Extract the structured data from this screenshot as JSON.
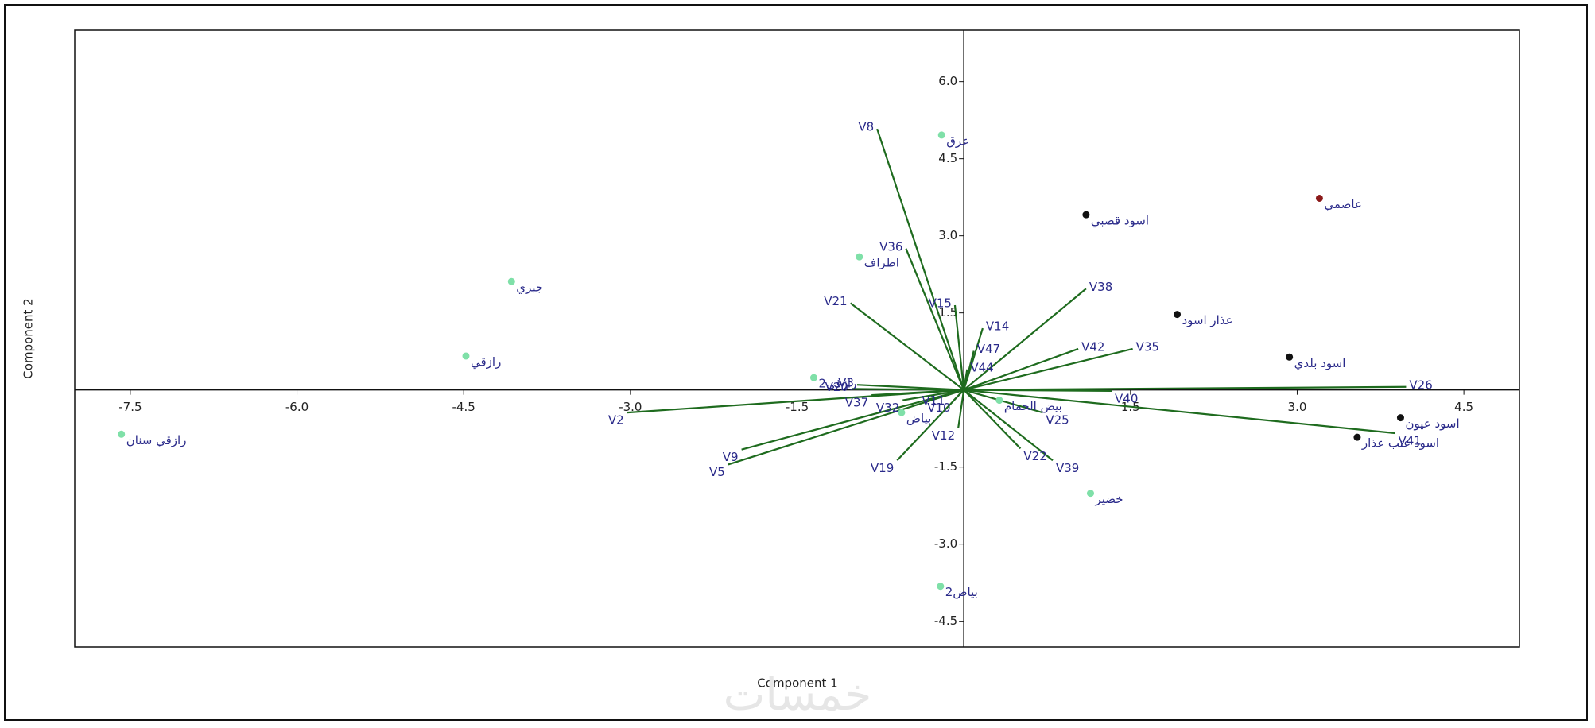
{
  "chart_data": {
    "type": "biplot",
    "x_label": "Component 1",
    "y_label": "Component 2",
    "watermark": "خمسات",
    "xlim": [
      -8,
      5
    ],
    "ylim": [
      -5,
      7
    ],
    "xticks": [
      -7.5,
      {
        "value": -6,
        "label": "-6.0"
      },
      -4.5,
      {
        "value": -3,
        "label": "-3.0"
      },
      -1.5,
      1.5,
      {
        "value": 3,
        "label": "3.0"
      },
      4.5
    ],
    "yticks": [
      {
        "value": 6,
        "label": "6.0"
      },
      4.5,
      {
        "value": 3,
        "label": "3.0"
      },
      1.5,
      -1.5,
      {
        "value": -3,
        "label": "-3.0"
      },
      -4.5
    ],
    "points": {
      "labels": [
        "رازقي سنان",
        "رازقي",
        "جبري",
        "اطراف",
        "عرق",
        "بياض2",
        "خضير",
        "اسود قصبي",
        "عاصمي",
        "عذار اسود",
        "اسود بلدي",
        "اسود عيون",
        "اسود عنب عذار",
        "رازقي2",
        "بياض",
        "بيض الحمام"
      ],
      "x": [
        -7.58,
        -4.48,
        -4.07,
        -0.94,
        -0.2,
        -0.21,
        1.14,
        1.1,
        3.2,
        1.92,
        2.93,
        3.93,
        3.54,
        -1.35,
        -0.56,
        0.32
      ],
      "y": [
        -0.86,
        0.66,
        2.11,
        2.59,
        4.96,
        -3.82,
        -2.01,
        3.41,
        3.73,
        1.47,
        0.64,
        -0.54,
        -0.92,
        0.24,
        -0.44,
        -0.2
      ],
      "colors": [
        "#7fe0a8",
        "#7fe0a8",
        "#7fe0a8",
        "#7fe0a8",
        "#7fe0a8",
        "#7fe0a8",
        "#7fe0a8",
        "#111111",
        "#8b1a1a",
        "#111111",
        "#111111",
        "#111111",
        "#111111",
        "#7fe0a8",
        "#7fe0a8",
        "#7fe0a8"
      ]
    },
    "vectors": {
      "color": "#1e6b1e",
      "labels": [
        "V8",
        "V36",
        "V21",
        "V15",
        "V14",
        "V47",
        "V44",
        "V38",
        "V42",
        "V35",
        "V26",
        "V40",
        "V41",
        "V25",
        "V22",
        "V39",
        "V12",
        "V19",
        "V5",
        "V9",
        "V2",
        "V3",
        "V20",
        "V37",
        "V32",
        "V10",
        "V11"
      ],
      "x": [
        -0.78,
        -0.52,
        -1.02,
        -0.08,
        0.17,
        0.09,
        0.03,
        1.1,
        1.03,
        1.52,
        3.98,
        1.33,
        3.88,
        0.71,
        0.51,
        0.8,
        -0.05,
        -0.6,
        -2.12,
        -2.0,
        -3.03,
        -0.96,
        -1.01,
        -0.83,
        -0.55,
        -0.09,
        -0.14
      ],
      "y": [
        5.08,
        2.75,
        1.69,
        1.65,
        1.2,
        0.76,
        0.4,
        1.97,
        0.8,
        0.8,
        0.06,
        -0.02,
        -0.84,
        -0.44,
        -1.14,
        -1.37,
        -0.74,
        -1.37,
        -1.45,
        -1.16,
        -0.44,
        0.1,
        0.02,
        -0.1,
        -0.2,
        -0.2,
        -0.06
      ]
    }
  }
}
